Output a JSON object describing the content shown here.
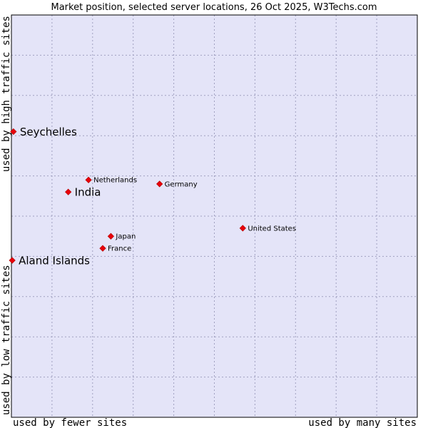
{
  "chart_data": {
    "type": "scatter",
    "title": "Market position, selected server locations, 26 Oct 2025, W3Techs.com",
    "xlabel_left": "used by fewer sites",
    "xlabel_right": "used by many sites",
    "ylabel_bottom": "used by low traffic sites",
    "ylabel_top": "used by high traffic sites",
    "xlim": [
      0,
      10
    ],
    "ylim": [
      0,
      10
    ],
    "grid": true,
    "colors": {
      "background": "#e4e4f8",
      "grid": "#a0a0c0",
      "marker": "#e8000b",
      "frame": "#000000"
    },
    "points": [
      {
        "label": "Seychelles",
        "x": 0.05,
        "y": 7.1,
        "emphasis": true
      },
      {
        "label": "India",
        "x": 1.4,
        "y": 5.6,
        "emphasis": true
      },
      {
        "label": "Aland Islands",
        "x": 0.02,
        "y": 3.9,
        "emphasis": true
      },
      {
        "label": "Netherlands",
        "x": 1.9,
        "y": 5.9,
        "emphasis": false
      },
      {
        "label": "Germany",
        "x": 3.65,
        "y": 5.8,
        "emphasis": false
      },
      {
        "label": "United States",
        "x": 5.7,
        "y": 4.7,
        "emphasis": false
      },
      {
        "label": "Japan",
        "x": 2.45,
        "y": 4.5,
        "emphasis": false
      },
      {
        "label": "France",
        "x": 2.25,
        "y": 4.2,
        "emphasis": false
      }
    ]
  }
}
